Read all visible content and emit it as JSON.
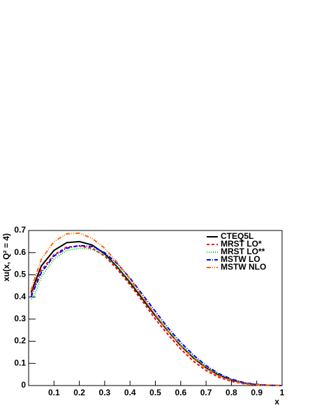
{
  "chart_data": {
    "type": "line",
    "x_label": "x",
    "y_label": "xu(x, Q² = 4)",
    "x": [
      0.01,
      0.02,
      0.05,
      0.1,
      0.15,
      0.2,
      0.25,
      0.3,
      0.35,
      0.4,
      0.45,
      0.5,
      0.55,
      0.6,
      0.65,
      0.7,
      0.75,
      0.8,
      0.85,
      0.9,
      0.95,
      1.0
    ],
    "series": [
      {
        "name": "CTEQ5L",
        "color": "#000000",
        "dash": "none",
        "values": [
          0.42,
          0.45,
          0.54,
          0.61,
          0.645,
          0.65,
          0.635,
          0.595,
          0.535,
          0.465,
          0.39,
          0.315,
          0.245,
          0.18,
          0.125,
          0.08,
          0.047,
          0.025,
          0.011,
          0.004,
          0.001,
          0
        ]
      },
      {
        "name": "MRST LO*",
        "color": "#ff0000",
        "dash": "4 3",
        "values": [
          0.41,
          0.44,
          0.52,
          0.59,
          0.625,
          0.63,
          0.62,
          0.585,
          0.525,
          0.455,
          0.38,
          0.3,
          0.23,
          0.165,
          0.11,
          0.068,
          0.038,
          0.019,
          0.008,
          0.002,
          0.0005,
          0
        ]
      },
      {
        "name": "MRST LO**",
        "color": "#00cc00",
        "dash": "1 2",
        "values": [
          0.39,
          0.4,
          0.49,
          0.57,
          0.61,
          0.62,
          0.615,
          0.59,
          0.535,
          0.47,
          0.395,
          0.32,
          0.25,
          0.185,
          0.13,
          0.085,
          0.05,
          0.027,
          0.012,
          0.004,
          0.001,
          0
        ]
      },
      {
        "name": "MSTW LO",
        "color": "#0000ff",
        "dash": "6 2 1 2",
        "values": [
          0.4,
          0.43,
          0.51,
          0.585,
          0.62,
          0.632,
          0.628,
          0.6,
          0.55,
          0.485,
          0.41,
          0.335,
          0.26,
          0.195,
          0.138,
          0.09,
          0.054,
          0.029,
          0.013,
          0.005,
          0.001,
          0
        ]
      },
      {
        "name": "MSTW NLO",
        "color": "#ff6600",
        "dash": "6 2 1 2 1 2",
        "values": [
          0.43,
          0.47,
          0.57,
          0.65,
          0.685,
          0.688,
          0.665,
          0.62,
          0.555,
          0.48,
          0.4,
          0.32,
          0.245,
          0.178,
          0.122,
          0.077,
          0.044,
          0.022,
          0.009,
          0.003,
          0.0007,
          0
        ]
      }
    ],
    "xlim": [
      0,
      1
    ],
    "ylim": [
      0,
      0.7
    ],
    "xticks": [
      0.1,
      0.2,
      0.3,
      0.4,
      0.5,
      0.6,
      0.7,
      0.8,
      0.9,
      1
    ],
    "yticks": [
      0,
      0.1,
      0.2,
      0.3,
      0.4,
      0.5,
      0.6,
      0.7
    ],
    "grid": false,
    "legend": "top-right"
  }
}
